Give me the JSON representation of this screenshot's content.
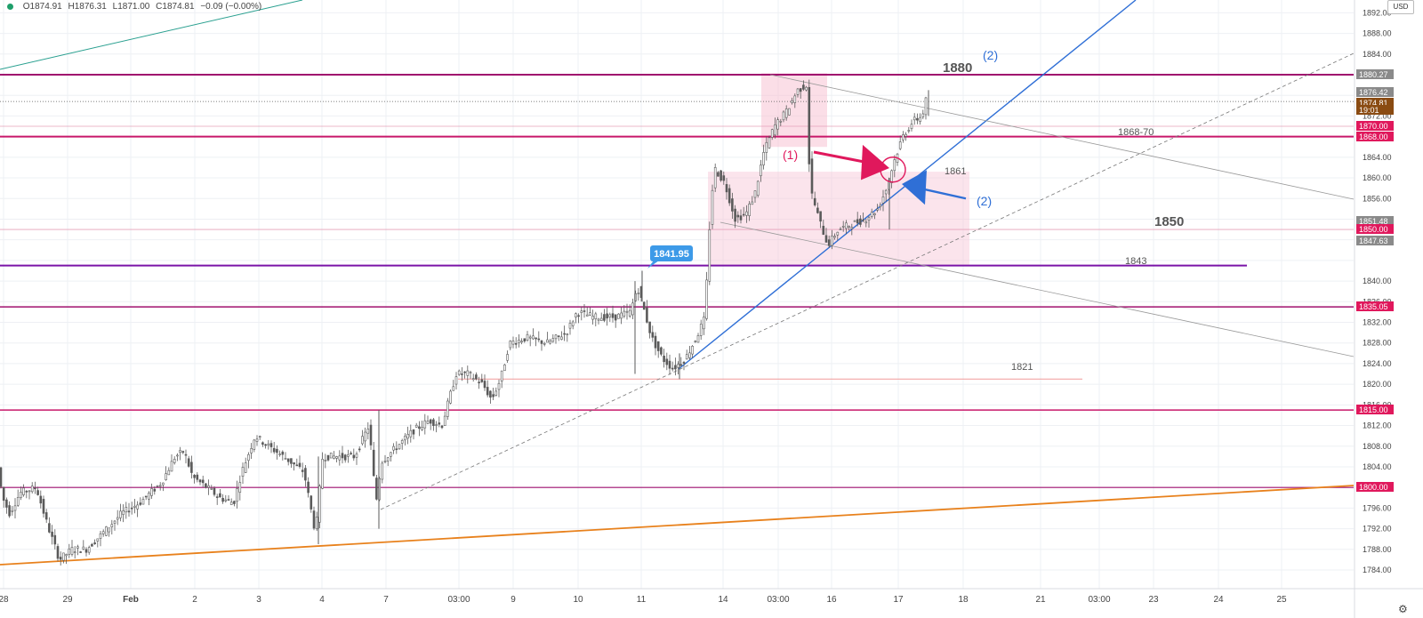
{
  "ohlc": {
    "open": "O1874.91",
    "high": "H1876.31",
    "low": "L1871.00",
    "close": "C1874.81",
    "change": "−0.09 (−0.00%)"
  },
  "currency_label": "USD",
  "chart_data": {
    "type": "candlestick",
    "title": "",
    "xlabel": "",
    "ylabel": "",
    "ylim": [
      1780.5,
      1893
    ],
    "grid": true,
    "x_tick_labels": [
      "28",
      "29",
      "Feb",
      "2",
      "3",
      "4",
      "7",
      "03:00",
      "9",
      "10",
      "11",
      "14",
      "03:00",
      "16",
      "17",
      "18",
      "21",
      "03:00",
      "23",
      "24",
      "25"
    ],
    "y_tick_labels": [
      "1892.00",
      "1888.00",
      "1884.00",
      "1872.00",
      "1864.00",
      "1860.00",
      "1856.00",
      "1840.00",
      "1836.00",
      "1832.00",
      "1828.00",
      "1824.00",
      "1820.00",
      "1816.00",
      "1812.00",
      "1808.00",
      "1804.00",
      "1796.00",
      "1792.00",
      "1788.00",
      "1784.00"
    ],
    "price_badges": [
      {
        "label": "1880.27",
        "value": 1880.27,
        "color": "#8a8a8a"
      },
      {
        "label": "1876.42",
        "value": 1876.42,
        "color": "#8a8a8a"
      },
      {
        "label": "1874.81",
        "value": 1874.81,
        "color": "#8a4b12"
      },
      {
        "label": "19:01",
        "value": 1873.3,
        "color": "#8a4b12"
      },
      {
        "label": "1870.00",
        "value": 1870.0,
        "color": "#e0185c"
      },
      {
        "label": "1868.00",
        "value": 1868.0,
        "color": "#e0185c"
      },
      {
        "label": "1851.48",
        "value": 1851.48,
        "color": "#8a8a8a"
      },
      {
        "label": "1850.00",
        "value": 1850.0,
        "color": "#e0185c"
      },
      {
        "label": "1847.63",
        "value": 1847.63,
        "color": "#8a8a8a"
      },
      {
        "label": "1835.05",
        "value": 1835.05,
        "color": "#e0185c"
      },
      {
        "label": "1815.00",
        "value": 1815.0,
        "color": "#e0185c"
      },
      {
        "label": "1800.00",
        "value": 1800.0,
        "color": "#e0185c"
      }
    ],
    "horizontal_levels": [
      {
        "value": 1880.0,
        "color": "#a0106e",
        "width": 2
      },
      {
        "value": 1868.0,
        "color": "#c8176a",
        "width": 2
      },
      {
        "value": 1843.0,
        "color": "#7a14a8",
        "width": 2
      },
      {
        "value": 1835.0,
        "color": "#a0106e",
        "width": 1.5
      },
      {
        "value": 1815.0,
        "color": "#c8176a",
        "width": 1.5
      },
      {
        "value": 1800.0,
        "color": "#a0106e",
        "width": 1.2
      }
    ],
    "text_annotations": [
      {
        "text": "1880",
        "color": "#555555",
        "size": 15,
        "bold": true
      },
      {
        "text": "(2)",
        "color": "#2f6fd6",
        "size": 14,
        "bold": false
      },
      {
        "text": "1868-70",
        "color": "#555555",
        "size": 11,
        "bold": false
      },
      {
        "text": "1861",
        "color": "#555555",
        "size": 11,
        "bold": false
      },
      {
        "text": "(1)",
        "color": "#e0185c",
        "size": 14,
        "bold": false
      },
      {
        "text": "(2)",
        "color": "#2f6fd6",
        "size": 14,
        "bold": false
      },
      {
        "text": "1850",
        "color": "#555555",
        "size": 15,
        "bold": true
      },
      {
        "text": "1843",
        "color": "#555555",
        "size": 11,
        "bold": false
      },
      {
        "text": "1821",
        "color": "#555555",
        "size": 11,
        "bold": false
      }
    ],
    "callout": {
      "label": "1841.95",
      "value": 1841.95,
      "color": "#3d9ae8"
    },
    "colors": {
      "candle": "#5a5a5a",
      "uptrend_line": "#2f6fd6",
      "support_line": "#e8811c",
      "top_trend_line": "#2aa090",
      "zone_fill": "#f7c3d4"
    }
  }
}
